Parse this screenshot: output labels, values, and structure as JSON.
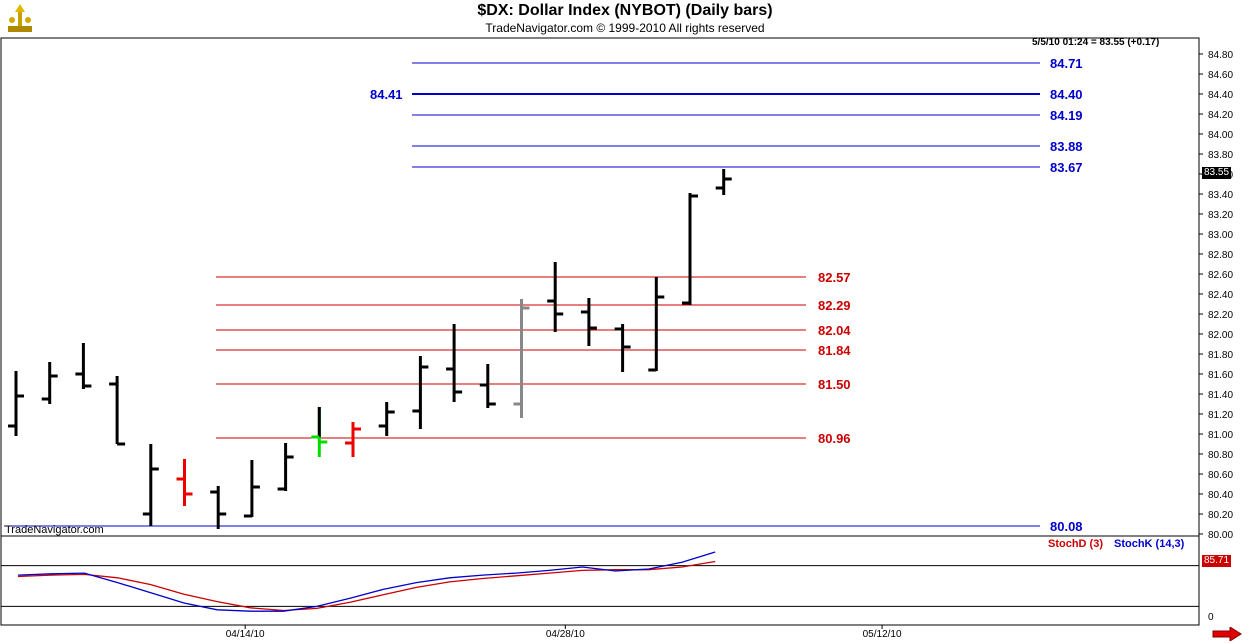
{
  "header": {
    "title": "$DX:  Dollar Index (NYBOT)  (Daily bars)",
    "subtitle": "TradeNavigator.com © 1999-2010 All rights reserved",
    "quote": "5/5/10 01:24 = 83.55 (+0.17)",
    "credit": "TradeNavigator.com"
  },
  "colors": {
    "blue_levels": "#0000cc",
    "red_levels": "#cc0000",
    "bar": "#000000",
    "bar_green": "#00dd00",
    "bar_red": "#ee0000",
    "bar_gray": "#888888"
  },
  "chart_data": {
    "type": "ohlc",
    "price_axis": {
      "ylim": [
        80.0,
        84.9
      ],
      "ticks": [
        "84.80",
        "84.60",
        "84.40",
        "84.20",
        "84.00",
        "83.80",
        "83.60",
        "83.40",
        "83.20",
        "83.00",
        "82.80",
        "82.60",
        "82.40",
        "82.20",
        "82.00",
        "81.80",
        "81.60",
        "81.40",
        "81.20",
        "81.00",
        "80.80",
        "80.60",
        "80.40",
        "80.20",
        "80.00"
      ]
    },
    "last_price": "83.55",
    "x_axis": {
      "labels": [
        {
          "label": "04/14/10",
          "bar": 6.8
        },
        {
          "label": "04/28/10",
          "bar": 16.3
        },
        {
          "label": "05/12/10",
          "bar": 25.7
        }
      ]
    },
    "bars": [
      {
        "o": 81.08,
        "h": 81.63,
        "l": 80.98,
        "c": 81.38,
        "color": "black"
      },
      {
        "o": 81.35,
        "h": 81.72,
        "l": 81.3,
        "c": 81.58,
        "color": "black"
      },
      {
        "o": 81.6,
        "h": 81.91,
        "l": 81.45,
        "c": 81.48,
        "color": "black"
      },
      {
        "o": 81.5,
        "h": 81.58,
        "l": 80.9,
        "c": 80.9,
        "color": "black"
      },
      {
        "o": 80.2,
        "h": 80.9,
        "l": 80.08,
        "c": 80.65,
        "color": "black"
      },
      {
        "o": 80.55,
        "h": 80.75,
        "l": 80.28,
        "c": 80.4,
        "color": "red"
      },
      {
        "o": 80.42,
        "h": 80.48,
        "l": 80.05,
        "c": 80.2,
        "color": "black"
      },
      {
        "o": 80.18,
        "h": 80.74,
        "l": 80.17,
        "c": 80.47,
        "color": "black"
      },
      {
        "o": 80.45,
        "h": 80.91,
        "l": 80.43,
        "c": 80.77,
        "color": "black"
      },
      {
        "o": 80.97,
        "h": 81.27,
        "l": 80.77,
        "c": 80.92,
        "color": "green"
      },
      {
        "o": 80.91,
        "h": 81.12,
        "l": 80.77,
        "c": 81.05,
        "color": "red"
      },
      {
        "o": 81.08,
        "h": 81.32,
        "l": 80.98,
        "c": 81.22,
        "color": "black"
      },
      {
        "o": 81.23,
        "h": 81.78,
        "l": 81.05,
        "c": 81.67,
        "color": "black"
      },
      {
        "o": 81.65,
        "h": 82.1,
        "l": 81.32,
        "c": 81.42,
        "color": "black"
      },
      {
        "o": 81.49,
        "h": 81.7,
        "l": 81.26,
        "c": 81.3,
        "color": "black"
      },
      {
        "o": 81.3,
        "h": 82.35,
        "l": 81.16,
        "c": 82.26,
        "color": "gray"
      },
      {
        "o": 82.33,
        "h": 82.72,
        "l": 82.02,
        "c": 82.2,
        "color": "black"
      },
      {
        "o": 82.22,
        "h": 82.36,
        "l": 81.88,
        "c": 82.06,
        "color": "black"
      },
      {
        "o": 82.05,
        "h": 82.1,
        "l": 81.62,
        "c": 81.87,
        "color": "black"
      },
      {
        "o": 81.64,
        "h": 82.57,
        "l": 81.63,
        "c": 82.37,
        "color": "black"
      },
      {
        "o": 82.31,
        "h": 83.41,
        "l": 82.29,
        "c": 83.38,
        "color": "black"
      },
      {
        "o": 83.46,
        "h": 83.65,
        "l": 83.39,
        "c": 83.55,
        "color": "black"
      }
    ],
    "levels": [
      {
        "value": 84.71,
        "label": "84.71",
        "color": "blue"
      },
      {
        "value": 84.4,
        "label": "84.40",
        "color": "blue",
        "bold": true
      },
      {
        "value": 84.19,
        "label": "84.19",
        "color": "blue"
      },
      {
        "value": 83.88,
        "label": "83.88",
        "color": "blue"
      },
      {
        "value": 83.67,
        "label": "83.67",
        "color": "blue"
      },
      {
        "value": 80.08,
        "label": "80.08",
        "color": "blue"
      },
      {
        "value": 82.57,
        "label": "82.57",
        "color": "red"
      },
      {
        "value": 82.29,
        "label": "82.29",
        "color": "red"
      },
      {
        "value": 82.04,
        "label": "82.04",
        "color": "red"
      },
      {
        "value": 81.84,
        "label": "81.84",
        "color": "red"
      },
      {
        "value": 81.5,
        "label": "81.50",
        "color": "red"
      },
      {
        "value": 80.96,
        "label": "80.96",
        "color": "red"
      }
    ],
    "annotation": {
      "label": "84.41",
      "color": "blue"
    },
    "stochastic": {
      "legend_d": "StochD (3)",
      "legend_k": "StochK (14,3)",
      "value_label": "85.71",
      "ylim": [
        0,
        100
      ],
      "ticks": [
        "0"
      ],
      "reference_lines": [
        80,
        20
      ],
      "stoch_k": [
        66,
        68,
        69,
        55,
        40,
        25,
        15,
        13,
        13,
        20,
        32,
        45,
        55,
        62,
        66,
        69,
        73,
        78,
        72,
        75,
        85,
        100
      ],
      "stoch_d": [
        64,
        66,
        67,
        62,
        52,
        38,
        27,
        18,
        14,
        17,
        26,
        37,
        48,
        56,
        61,
        65,
        69,
        73,
        74,
        74,
        78,
        86
      ]
    }
  }
}
